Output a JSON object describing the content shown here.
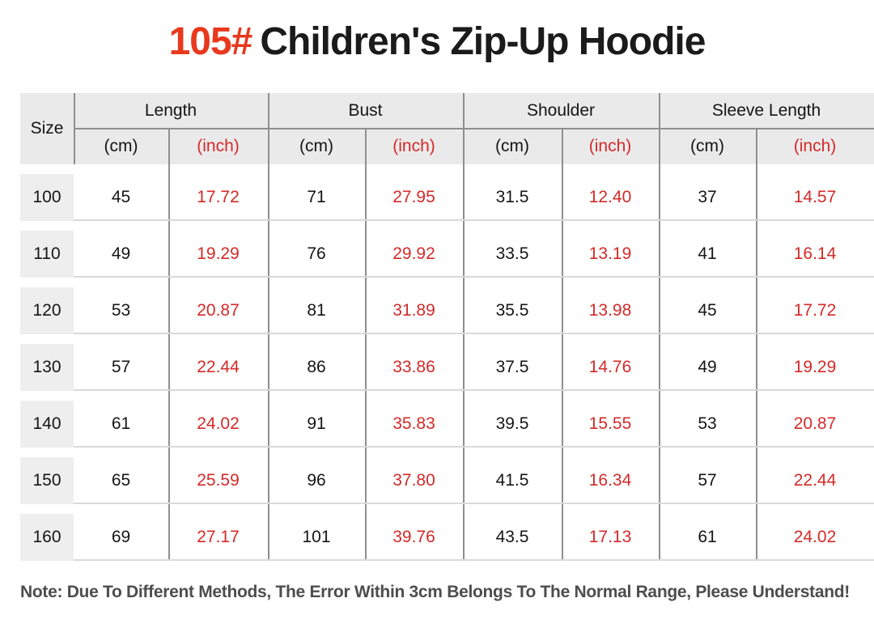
{
  "title": {
    "code": "105#",
    "text": "Children's Zip-Up Hoodie"
  },
  "table": {
    "size_header": "Size",
    "unit_cm": "(cm)",
    "unit_inch": "(inch)",
    "groups": [
      {
        "label": "Length"
      },
      {
        "label": "Bust"
      },
      {
        "label": "Shoulder"
      },
      {
        "label": "Sleeve Length"
      }
    ],
    "rows": [
      {
        "size": "100",
        "values": [
          "45",
          "17.72",
          "71",
          "27.95",
          "31.5",
          "12.40",
          "37",
          "14.57"
        ]
      },
      {
        "size": "110",
        "values": [
          "49",
          "19.29",
          "76",
          "29.92",
          "33.5",
          "13.19",
          "41",
          "16.14"
        ]
      },
      {
        "size": "120",
        "values": [
          "53",
          "20.87",
          "81",
          "31.89",
          "35.5",
          "13.98",
          "45",
          "17.72"
        ]
      },
      {
        "size": "130",
        "values": [
          "57",
          "22.44",
          "86",
          "33.86",
          "37.5",
          "14.76",
          "49",
          "19.29"
        ]
      },
      {
        "size": "140",
        "values": [
          "61",
          "24.02",
          "91",
          "35.83",
          "39.5",
          "15.55",
          "53",
          "20.87"
        ]
      },
      {
        "size": "150",
        "values": [
          "65",
          "25.59",
          "96",
          "37.80",
          "41.5",
          "16.34",
          "57",
          "22.44"
        ]
      },
      {
        "size": "160",
        "values": [
          "69",
          "27.17",
          "101",
          "39.76",
          "43.5",
          "17.13",
          "61",
          "24.02"
        ]
      }
    ]
  },
  "note": "Note: Due To Different Methods, The Error Within 3cm Belongs To The Normal Range, Please Understand!",
  "colors": {
    "title_red": "#e8391e",
    "value_red": "#d42a2a",
    "header_bg": "#eaeaea",
    "size_cell_bg": "#eeeeee",
    "grid_dark": "#8f8f8f",
    "grid_light": "#d9d9d9",
    "text_dark": "#1b1b1b",
    "note_gray": "#4d4d4d"
  },
  "chart_data": {
    "type": "table",
    "title": "105# Children's Zip-Up Hoodie",
    "columns": [
      "Size",
      "Length (cm)",
      "Length (inch)",
      "Bust (cm)",
      "Bust (inch)",
      "Shoulder (cm)",
      "Shoulder (inch)",
      "Sleeve Length (cm)",
      "Sleeve Length (inch)"
    ],
    "rows": [
      [
        100,
        45,
        17.72,
        71,
        27.95,
        31.5,
        12.4,
        37,
        14.57
      ],
      [
        110,
        49,
        19.29,
        76,
        29.92,
        33.5,
        13.19,
        41,
        16.14
      ],
      [
        120,
        53,
        20.87,
        81,
        31.89,
        35.5,
        13.98,
        45,
        17.72
      ],
      [
        130,
        57,
        22.44,
        86,
        33.86,
        37.5,
        14.76,
        49,
        19.29
      ],
      [
        140,
        61,
        24.02,
        91,
        35.83,
        39.5,
        15.55,
        53,
        20.87
      ],
      [
        150,
        65,
        25.59,
        96,
        37.8,
        41.5,
        16.34,
        57,
        22.44
      ],
      [
        160,
        69,
        27.17,
        101,
        39.76,
        43.5,
        17.13,
        61,
        24.02
      ]
    ],
    "note": "Note: Due To Different Methods, The Error Within 3cm Belongs To The Normal Range, Please Understand!"
  }
}
